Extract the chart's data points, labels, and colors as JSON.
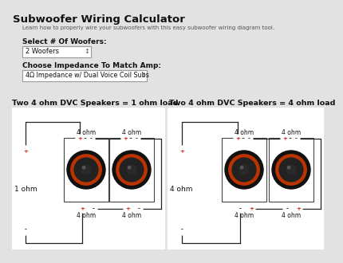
{
  "title": "Subwoofer Wiring Calculator",
  "subtitle": "Learn how to properly wire your subwoofers with this easy subwoofer wiring diagram tool.",
  "label_woofers": "Select # Of Woofers:",
  "dropdown_woofers": "2 Woofers",
  "label_impedance": "Choose Impedance To Match Amp:",
  "dropdown_impedance": "4Ω Impedance w/ Dual Voice Coil Subs",
  "diagram1_title": "Two 4 ohm DVC Speakers = 1 ohm load",
  "diagram2_title": "Two 4 ohm DVC Speakers = 4 ohm load",
  "diagram1_load": "1 ohm",
  "diagram2_load": "4 ohm",
  "bg_color": "#e2e2e2",
  "white": "#ffffff",
  "text_color": "#111111",
  "gray_text": "#555555",
  "border_color": "#999999",
  "speaker_outer": "#111111",
  "ring_color": "#bb3300",
  "cone_color": "#222222",
  "wire_color": "#222222",
  "plus_color": "#cc2222",
  "minus_color": "#222222",
  "terminal_border_plus": "#cc5555",
  "terminal_border_minus": "#888888"
}
